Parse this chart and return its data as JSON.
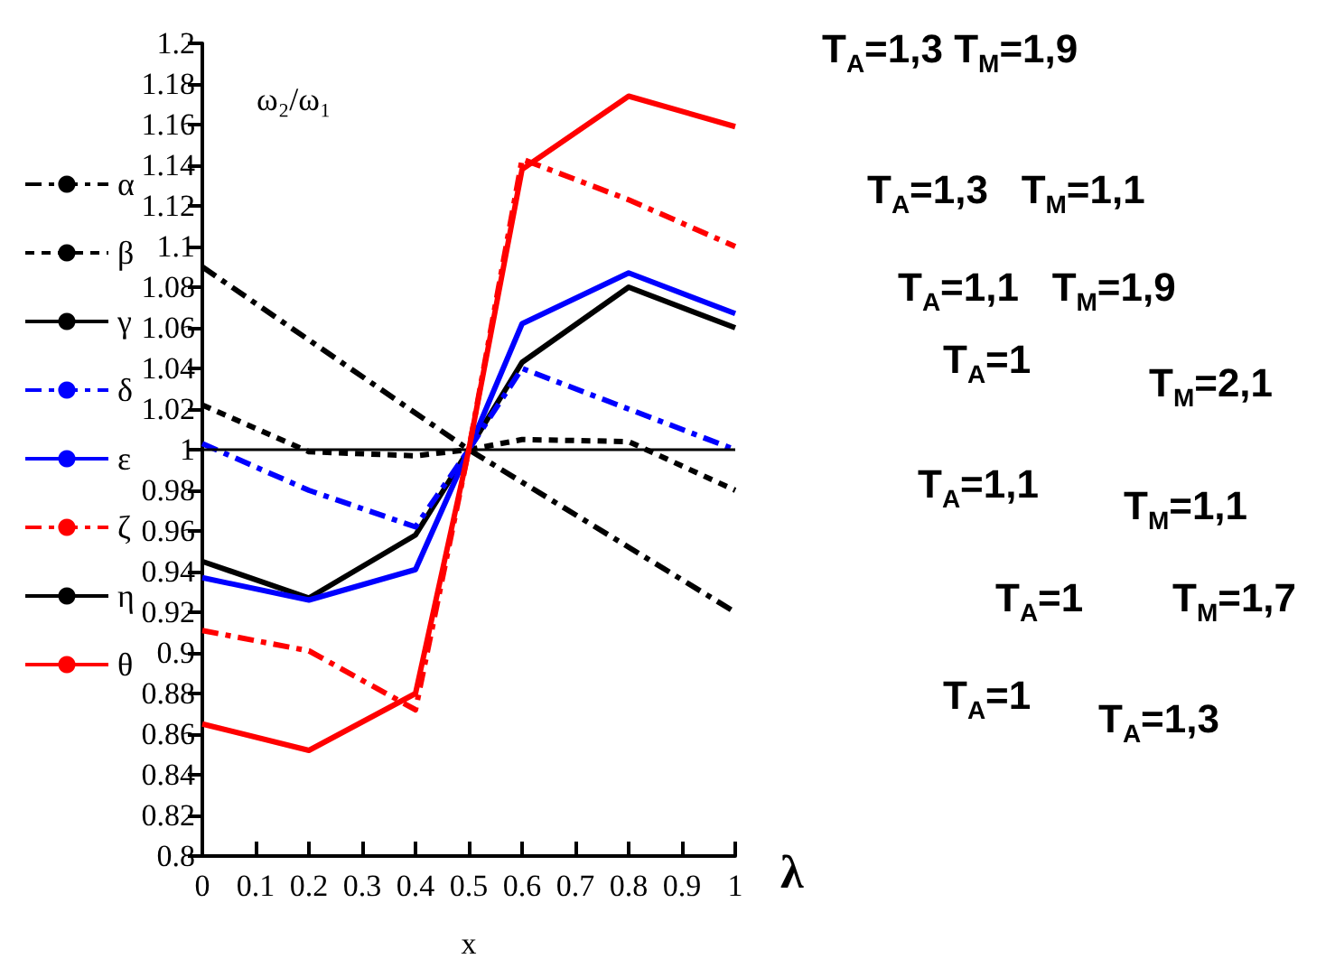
{
  "chart_data": {
    "type": "line",
    "ylabel": "ω₂/ω₁",
    "xlabel": "x",
    "x": [
      0,
      0.2,
      0.4,
      0.5,
      0.6,
      0.8,
      1
    ],
    "series": [
      {
        "name": "α",
        "color": "#000000",
        "line_style": "dashed",
        "values": [
          1.09,
          1.054,
          1.018,
          1,
          0.984,
          0.952,
          0.92
        ]
      },
      {
        "name": "β",
        "color": "#000000",
        "line_style": "dotted",
        "values": [
          1.022,
          0.999,
          0.997,
          1,
          1.005,
          1.004,
          0.98
        ]
      },
      {
        "name": "γ",
        "color": "#000000",
        "line_style": "solid",
        "values": [
          0.945,
          0.927,
          0.958,
          1,
          1.043,
          1.08,
          1.06
        ]
      },
      {
        "name": "δ",
        "color": "#0000ff",
        "line_style": "dashed",
        "values": [
          1.003,
          0.98,
          0.962,
          1,
          1.04,
          1.02,
          1.0
        ]
      },
      {
        "name": "ε",
        "color": "#0000ff",
        "line_style": "solid",
        "values": [
          0.937,
          0.926,
          0.941,
          1,
          1.062,
          1.087,
          1.067
        ]
      },
      {
        "name": "ζ",
        "color": "#ff0000",
        "line_style": "dashed",
        "values": [
          0.911,
          0.901,
          0.872,
          1,
          1.143,
          1.123,
          1.1
        ]
      },
      {
        "name": "η",
        "color": "#000000",
        "line_style": "solid",
        "values": [
          1,
          1,
          1,
          1,
          1,
          1,
          1
        ]
      },
      {
        "name": "θ",
        "color": "#ff0000",
        "line_style": "solid",
        "values": [
          0.865,
          0.852,
          0.88,
          1,
          1.138,
          1.174,
          1.159
        ]
      }
    ],
    "xlim": [
      0,
      1
    ],
    "xticks": [
      0,
      0.1,
      0.2,
      0.3,
      0.4,
      0.5,
      0.6,
      0.7,
      0.8,
      0.9,
      1
    ],
    "ylim": [
      0.8,
      1.2
    ],
    "yticks": [
      0.8,
      0.82,
      0.84,
      0.86,
      0.88,
      0.9,
      0.92,
      0.94,
      0.96,
      0.98,
      1,
      1.02,
      1.04,
      1.06,
      1.08,
      1.1,
      1.12,
      1.14,
      1.16,
      1.18,
      1.2
    ],
    "grid": false,
    "legend": "left",
    "marker": "none",
    "annotations": [
      "λ",
      "T$_{A}$=1,3 T$_{M}$=1,9",
      "T$_{A}$=1,3   T$_{M}$=1,1",
      "T$_{A}$=1,1   T$_{M}$=1,9",
      "T$_{A}$=1",
      "T$_{M}$=2,1",
      "T$_{A}$=1,1",
      "T$_{M}$=1,1",
      "T$_{A}$=1",
      "T$_{M}$=1,7",
      "T$_{A}$=1",
      "T$_{A}$=1,3"
    ]
  }
}
